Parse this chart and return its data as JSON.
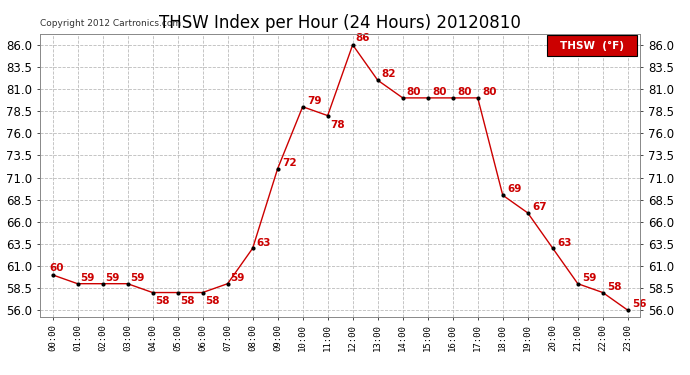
{
  "title": "THSW Index per Hour (24 Hours) 20120810",
  "copyright": "Copyright 2012 Cartronics.com",
  "legend_label": "THSW  (°F)",
  "hour_labels": [
    "00:00",
    "01:00",
    "02:00",
    "03:00",
    "04:00",
    "05:00",
    "06:00",
    "07:00",
    "08:00",
    "09:00",
    "10:00",
    "11:00",
    "12:00",
    "13:00",
    "14:00",
    "15:00",
    "16:00",
    "17:00",
    "18:00",
    "19:00",
    "20:00",
    "21:00",
    "22:00",
    "23:00"
  ],
  "values": [
    60,
    59,
    59,
    59,
    58,
    58,
    58,
    59,
    63,
    72,
    79,
    78,
    86,
    82,
    80,
    80,
    80,
    80,
    69,
    67,
    63,
    59,
    58,
    56
  ],
  "ylim": [
    55.25,
    87.25
  ],
  "yticks": [
    56.0,
    58.5,
    61.0,
    63.5,
    66.0,
    68.5,
    71.0,
    73.5,
    76.0,
    78.5,
    81.0,
    83.5,
    86.0
  ],
  "line_color": "#cc0000",
  "marker_color": "#000000",
  "marker_size": 3,
  "grid_color": "#bbbbbb",
  "bg_color": "#ffffff",
  "title_fontsize": 12,
  "annotation_fontsize": 7.5,
  "annotation_color": "#cc0000",
  "legend_bg": "#cc0000",
  "legend_text_color": "#ffffff",
  "tick_fontsize": 8.5,
  "xtick_fontsize": 6.5
}
